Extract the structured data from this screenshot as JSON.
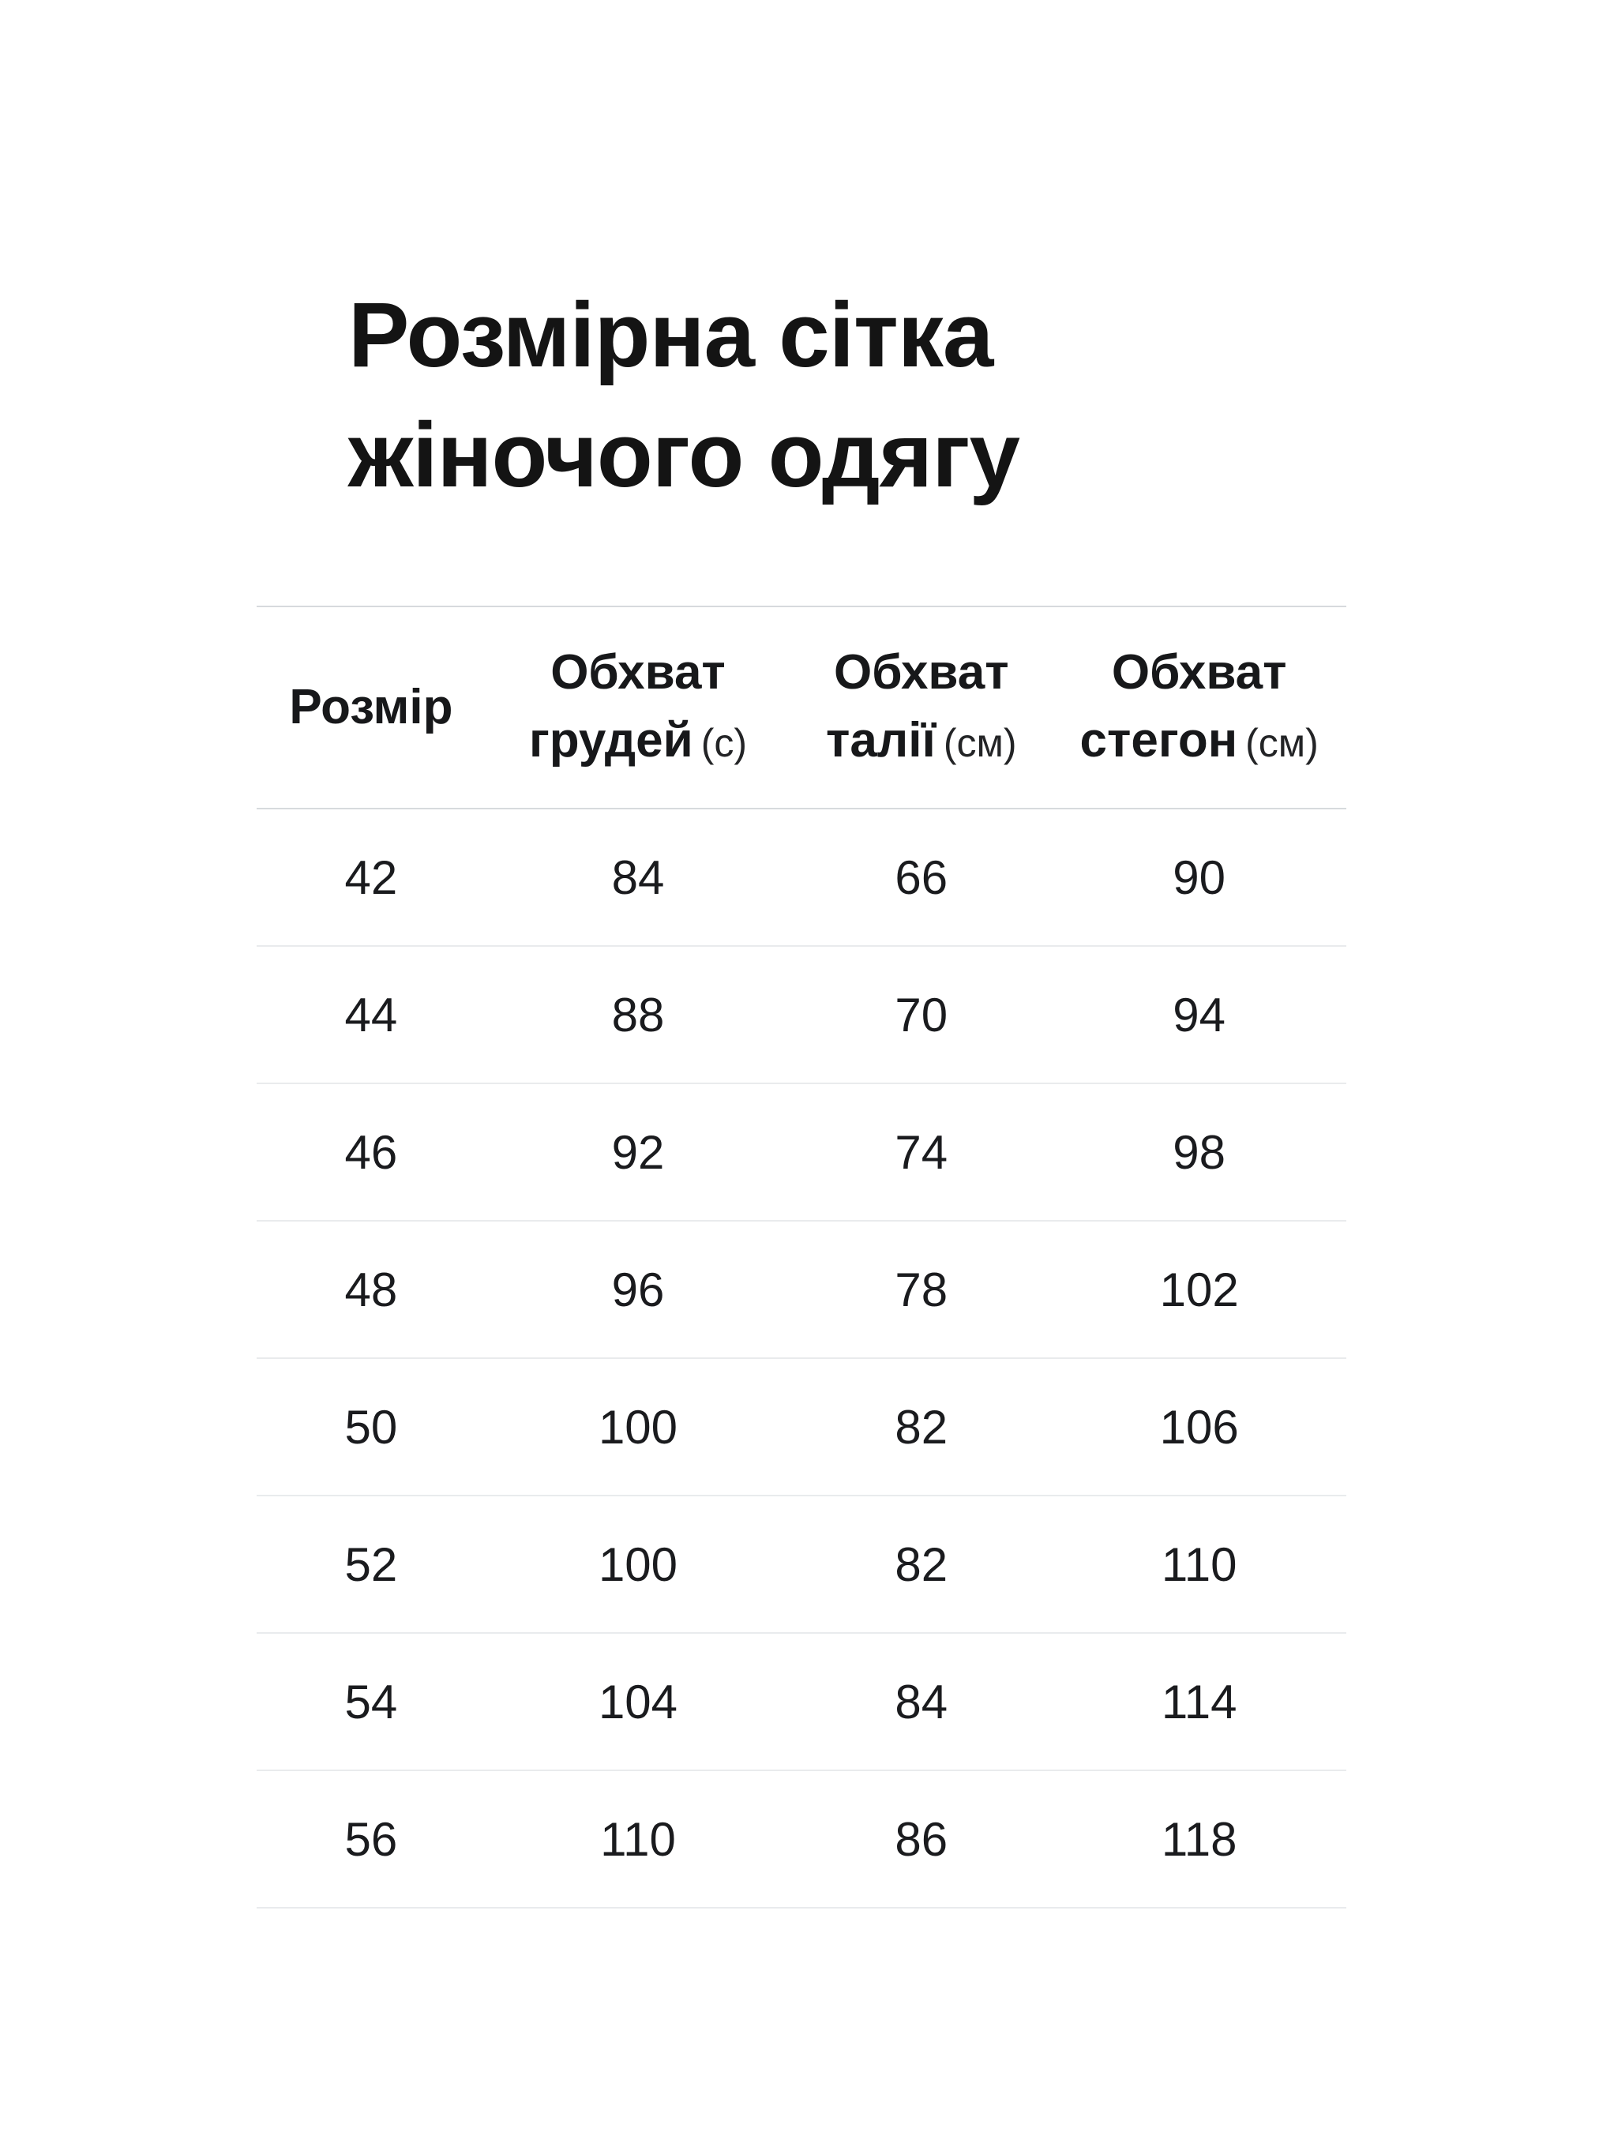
{
  "page": {
    "background": "#ffffff"
  },
  "title": {
    "line1": "Розмірна сітка",
    "line2": "жіночого одягу"
  },
  "table": {
    "columns": [
      {
        "line1": "Розмір",
        "line2": "",
        "unit": ""
      },
      {
        "line1": "Обхват",
        "line2": "грудей",
        "unit": "(с)"
      },
      {
        "line1": "Обхват",
        "line2": "талії",
        "unit": "(см)"
      },
      {
        "line1": "Обхват",
        "line2": "стегон",
        "unit": "(см)"
      }
    ],
    "rows": [
      [
        "42",
        "84",
        "66",
        "90"
      ],
      [
        "44",
        "88",
        "70",
        "94"
      ],
      [
        "46",
        "92",
        "74",
        "98"
      ],
      [
        "48",
        "96",
        "78",
        "102"
      ],
      [
        "50",
        "100",
        "82",
        "106"
      ],
      [
        "52",
        "100",
        "82",
        "110"
      ],
      [
        "54",
        "104",
        "84",
        "114"
      ],
      [
        "56",
        "110",
        "86",
        "118"
      ]
    ]
  },
  "colors": {
    "text": "#17181a",
    "title": "#141414",
    "line_strong": "#d7dadd",
    "line_soft": "#e9ebed"
  }
}
